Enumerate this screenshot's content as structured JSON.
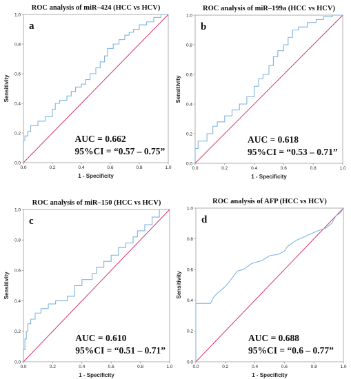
{
  "chart_data": [
    {
      "type": "line",
      "panel": "a",
      "title": "ROC analysis of miR–424 (HCC vs HCV)",
      "xlabel": "1 - Specificity",
      "ylabel": "Sensitivity",
      "xlim": [
        0,
        1
      ],
      "ylim": [
        0,
        1
      ],
      "xticks": [
        "0.0",
        "0.2",
        "0.4",
        "0.6",
        "0.8",
        "1.0"
      ],
      "yticks": [
        "0.0",
        "0.2",
        "0.4",
        "0.6",
        "0.8",
        "1.0"
      ],
      "annotation": [
        "AUC = 0.662",
        "95%CI = “0.57 – 0.75”"
      ],
      "series": [
        {
          "color": "#7fb2e0",
          "x": [
            0,
            0,
            0.01,
            0.01,
            0.03,
            0.03,
            0.05,
            0.05,
            0.1,
            0.1,
            0.15,
            0.15,
            0.2,
            0.2,
            0.22,
            0.22,
            0.25,
            0.25,
            0.3,
            0.3,
            0.33,
            0.33,
            0.36,
            0.36,
            0.4,
            0.4,
            0.43,
            0.43,
            0.46,
            0.46,
            0.5,
            0.5,
            0.53,
            0.53,
            0.56,
            0.56,
            0.58,
            0.58,
            0.62,
            0.62,
            0.66,
            0.66,
            0.7,
            0.7,
            0.73,
            0.73,
            0.76,
            0.76,
            0.8,
            0.8,
            0.85,
            0.85,
            0.9,
            0.9,
            0.95,
            0.95,
            1
          ],
          "y": [
            0,
            0.15,
            0.15,
            0.18,
            0.18,
            0.21,
            0.21,
            0.25,
            0.25,
            0.28,
            0.28,
            0.31,
            0.31,
            0.36,
            0.36,
            0.4,
            0.4,
            0.42,
            0.42,
            0.45,
            0.45,
            0.48,
            0.48,
            0.51,
            0.51,
            0.53,
            0.53,
            0.56,
            0.56,
            0.6,
            0.6,
            0.64,
            0.64,
            0.68,
            0.68,
            0.72,
            0.72,
            0.77,
            0.77,
            0.8,
            0.8,
            0.83,
            0.83,
            0.86,
            0.86,
            0.88,
            0.88,
            0.9,
            0.9,
            0.93,
            0.93,
            0.95,
            0.95,
            0.98,
            0.98,
            1,
            1
          ]
        },
        {
          "color": "#d6336c",
          "x": [
            0,
            1
          ],
          "y": [
            0,
            1
          ]
        }
      ]
    },
    {
      "type": "line",
      "panel": "b",
      "title": "ROC analysis of miR–199a (HCC vs HCV)",
      "xlabel": "1 - Specificity",
      "ylabel": "Sensitivity",
      "xlim": [
        0,
        1
      ],
      "ylim": [
        0,
        1
      ],
      "xticks": [
        "0.0",
        "0.2",
        "0.4",
        "0.6",
        "0.8",
        "1.0"
      ],
      "yticks": [
        "0.0",
        "0.2",
        "0.4",
        "0.6",
        "0.8",
        "1.0"
      ],
      "annotation": [
        "AUC = 0.618",
        "95%CI = “0.53 – 0.71”"
      ],
      "series": [
        {
          "color": "#7fb2e0",
          "x": [
            0,
            0,
            0.02,
            0.02,
            0.08,
            0.08,
            0.12,
            0.12,
            0.15,
            0.15,
            0.2,
            0.2,
            0.25,
            0.25,
            0.3,
            0.3,
            0.35,
            0.35,
            0.4,
            0.4,
            0.43,
            0.43,
            0.46,
            0.46,
            0.5,
            0.5,
            0.53,
            0.53,
            0.56,
            0.56,
            0.6,
            0.6,
            0.63,
            0.63,
            0.66,
            0.66,
            0.7,
            0.7,
            0.76,
            0.76,
            0.82,
            0.82,
            0.87,
            0.87,
            0.93,
            0.93,
            1
          ],
          "y": [
            0,
            0.1,
            0.1,
            0.15,
            0.15,
            0.2,
            0.2,
            0.25,
            0.25,
            0.28,
            0.28,
            0.32,
            0.32,
            0.36,
            0.36,
            0.4,
            0.4,
            0.45,
            0.45,
            0.52,
            0.52,
            0.57,
            0.57,
            0.6,
            0.6,
            0.66,
            0.66,
            0.72,
            0.72,
            0.76,
            0.76,
            0.8,
            0.8,
            0.85,
            0.85,
            0.9,
            0.9,
            0.92,
            0.92,
            0.95,
            0.95,
            0.97,
            0.97,
            0.99,
            0.99,
            1,
            1
          ]
        },
        {
          "color": "#d6336c",
          "x": [
            0,
            1
          ],
          "y": [
            0,
            1
          ]
        }
      ]
    },
    {
      "type": "line",
      "panel": "c",
      "title": "ROC analysis of miR–150 (HCC vs HCV)",
      "xlabel": "1 - Specificity",
      "ylabel": "Sensitivity",
      "xlim": [
        0,
        1
      ],
      "ylim": [
        0,
        1
      ],
      "xticks": [
        "0.0",
        "0.2",
        "0.4",
        "0.6",
        "0.8",
        "1.0"
      ],
      "yticks": [
        "0.0",
        "0.2",
        "0.4",
        "0.6",
        "0.8",
        "1.0"
      ],
      "annotation": [
        "AUC = 0.610",
        "95%CI = “0.51 – 0.71”"
      ],
      "series": [
        {
          "color": "#7fb2e0",
          "x": [
            0,
            0,
            0.01,
            0.01,
            0.02,
            0.02,
            0.03,
            0.03,
            0.05,
            0.05,
            0.08,
            0.08,
            0.12,
            0.12,
            0.17,
            0.17,
            0.22,
            0.22,
            0.3,
            0.3,
            0.35,
            0.35,
            0.4,
            0.4,
            0.47,
            0.47,
            0.5,
            0.5,
            0.55,
            0.55,
            0.6,
            0.6,
            0.65,
            0.65,
            0.7,
            0.7,
            0.75,
            0.75,
            0.78,
            0.78,
            0.83,
            0.83,
            0.88,
            0.88,
            0.93,
            0.93,
            1
          ],
          "y": [
            0,
            0.08,
            0.08,
            0.15,
            0.15,
            0.2,
            0.2,
            0.25,
            0.25,
            0.28,
            0.28,
            0.32,
            0.32,
            0.35,
            0.35,
            0.38,
            0.38,
            0.4,
            0.4,
            0.43,
            0.43,
            0.5,
            0.5,
            0.54,
            0.54,
            0.58,
            0.58,
            0.62,
            0.62,
            0.66,
            0.66,
            0.7,
            0.7,
            0.75,
            0.75,
            0.78,
            0.78,
            0.82,
            0.82,
            0.86,
            0.86,
            0.9,
            0.9,
            0.95,
            0.95,
            1,
            1
          ]
        },
        {
          "color": "#d6336c",
          "x": [
            0,
            1
          ],
          "y": [
            0,
            1
          ]
        }
      ]
    },
    {
      "type": "line",
      "panel": "d",
      "title": "ROC analysis of AFP (HCC vs HCV)",
      "xlabel": "1 - Specificity",
      "ylabel": "Sensitivity",
      "xlim": [
        0,
        1
      ],
      "ylim": [
        0,
        1
      ],
      "xticks": [
        "0.0",
        "0.2",
        "0.4",
        "0.6",
        "0.8",
        "1.0"
      ],
      "yticks": [
        "0.0",
        "0.2",
        "0.4",
        "0.6",
        "0.8",
        "1.0"
      ],
      "annotation": [
        "AUC = 0.688",
        "95%CI = “0.6 – 0.77”"
      ],
      "series": [
        {
          "color": "#7fb2e0",
          "x": [
            0,
            0,
            0.1,
            0.12,
            0.15,
            0.2,
            0.25,
            0.28,
            0.32,
            0.38,
            0.45,
            0.5,
            0.56,
            0.6,
            0.62,
            0.68,
            0.75,
            0.82,
            0.88,
            0.92,
            0.95,
            0.98,
            1
          ],
          "y": [
            0,
            0.38,
            0.38,
            0.42,
            0.45,
            0.49,
            0.55,
            0.59,
            0.6,
            0.64,
            0.66,
            0.69,
            0.7,
            0.72,
            0.75,
            0.79,
            0.82,
            0.85,
            0.87,
            0.9,
            0.95,
            0.97,
            1
          ]
        },
        {
          "color": "#d6336c",
          "x": [
            0,
            1
          ],
          "y": [
            0,
            1
          ]
        }
      ]
    }
  ]
}
